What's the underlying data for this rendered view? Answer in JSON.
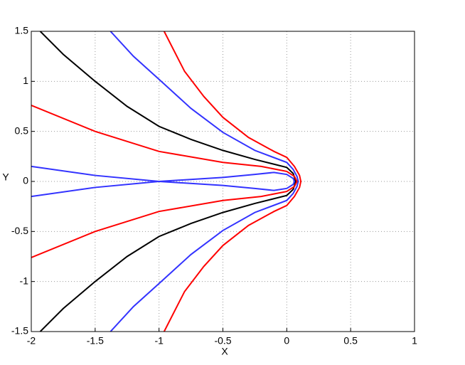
{
  "chart_data": {
    "type": "line",
    "xlabel": "X",
    "ylabel": "Y",
    "xlim": [
      -2,
      1
    ],
    "ylim": [
      -1.5,
      1.5
    ],
    "xticks": [
      -2,
      -1.5,
      -1,
      -0.5,
      0,
      0.5,
      1
    ],
    "yticks": [
      -1.5,
      -1,
      -0.5,
      0,
      0.5,
      1,
      1.5
    ],
    "grid": true,
    "series": [
      {
        "color": "#ff0000",
        "x": [
          -0.96,
          -0.8,
          -0.65,
          -0.5,
          -0.3,
          -0.1,
          0,
          0.06,
          0.1,
          0.11,
          0.1,
          0.06,
          0,
          -0.1,
          -0.3,
          -0.5,
          -0.65,
          -0.8,
          -0.96
        ],
        "values": [
          1.5,
          1.1,
          0.85,
          0.64,
          0.44,
          0.3,
          0.24,
          0.15,
          0.06,
          0,
          -0.06,
          -0.15,
          -0.24,
          -0.3,
          -0.44,
          -0.64,
          -0.85,
          -1.1,
          -1.5
        ]
      },
      {
        "color": "#3333ff",
        "x": [
          -1.38,
          -1.2,
          -1,
          -0.75,
          -0.5,
          -0.25,
          0,
          0.05,
          0.08,
          0.09,
          0.08,
          0.05,
          0,
          -0.25,
          -0.5,
          -0.75,
          -1,
          -1.2,
          -1.38
        ],
        "values": [
          1.5,
          1.25,
          1.02,
          0.73,
          0.49,
          0.31,
          0.19,
          0.12,
          0.05,
          0,
          -0.05,
          -0.12,
          -0.19,
          -0.31,
          -0.49,
          -0.73,
          -1.02,
          -1.25,
          -1.5
        ]
      },
      {
        "color": "#000000",
        "x": [
          -1.93,
          -1.75,
          -1.5,
          -1.25,
          -1,
          -0.75,
          -0.5,
          -0.25,
          0,
          0.05,
          0.07,
          0.05,
          0,
          -0.25,
          -0.5,
          -0.75,
          -1,
          -1.25,
          -1.5,
          -1.75,
          -1.93
        ],
        "values": [
          1.5,
          1.27,
          1.0,
          0.75,
          0.55,
          0.42,
          0.31,
          0.22,
          0.14,
          0.08,
          0,
          -0.08,
          -0.14,
          -0.22,
          -0.31,
          -0.42,
          -0.55,
          -0.75,
          -1.0,
          -1.27,
          -1.5
        ]
      },
      {
        "color": "#ff0000",
        "x": [
          -2,
          -1.5,
          -1,
          -0.5,
          -0.2,
          0,
          0.06,
          0.08,
          0.06,
          0,
          -0.2,
          -0.5,
          -1,
          -1.5,
          -2
        ],
        "values": [
          0.76,
          0.5,
          0.3,
          0.19,
          0.15,
          0.1,
          0.05,
          0,
          -0.05,
          -0.1,
          -0.15,
          -0.19,
          -0.3,
          -0.5,
          -0.76
        ]
      },
      {
        "color": "#3333ff",
        "x": [
          -2,
          -1.5,
          -1,
          -0.5,
          -0.25,
          -0.1,
          0,
          0.05,
          0.06,
          0.05,
          0,
          -0.1,
          -0.25,
          -0.5,
          -1,
          -1.5,
          -2
        ],
        "values": [
          0.15,
          0.06,
          0,
          -0.04,
          -0.07,
          -0.09,
          -0.07,
          -0.03,
          0,
          0.03,
          0.07,
          0.09,
          0.07,
          0.04,
          0,
          -0.06,
          -0.15
        ]
      }
    ]
  }
}
